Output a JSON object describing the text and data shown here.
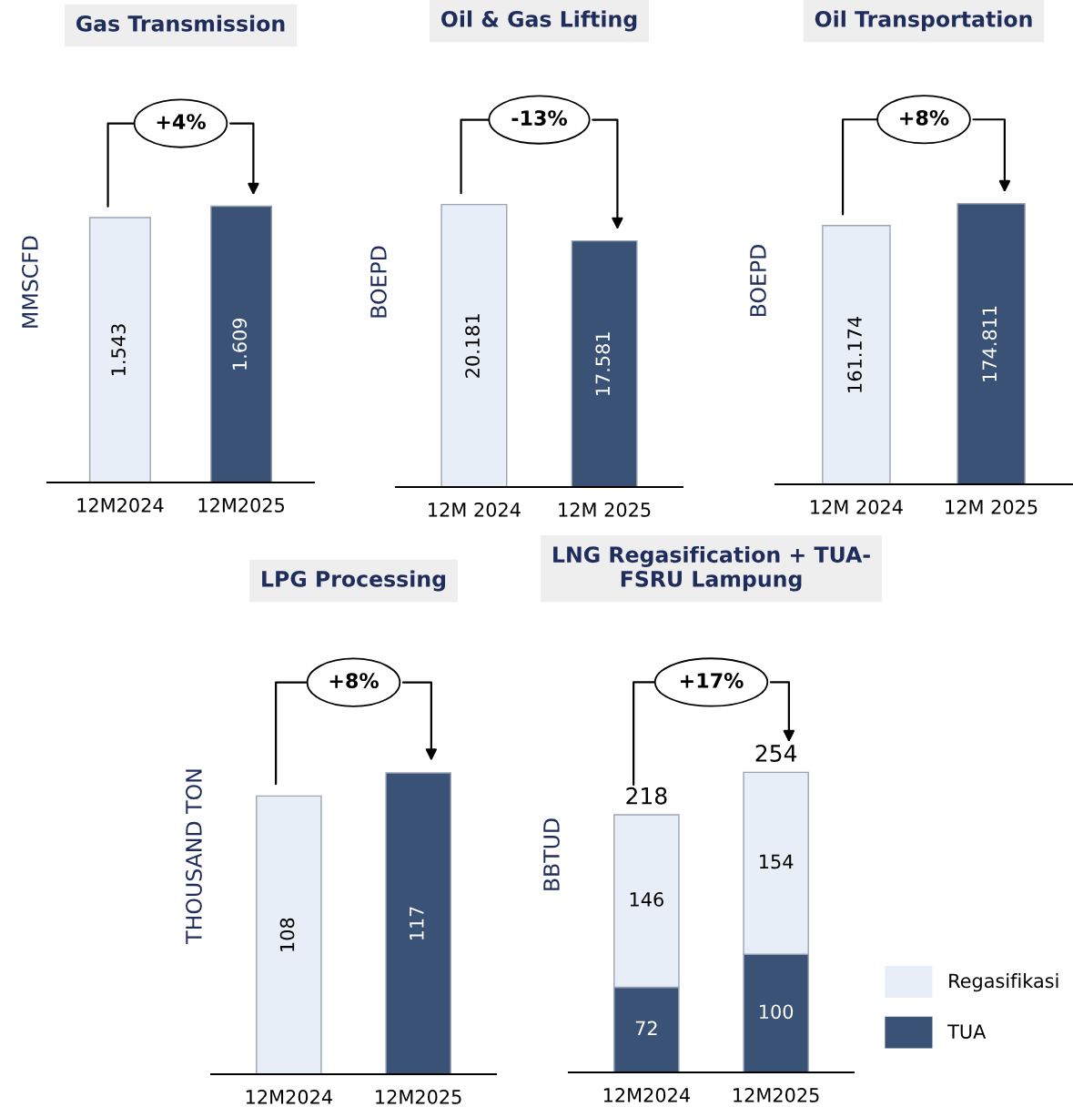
{
  "chart_data": [
    {
      "type": "bar",
      "title": "Gas Transmission",
      "ylabel": "MMSCFD",
      "categories": [
        "12M2024",
        "12M2025"
      ],
      "values": [
        1.543,
        1.609
      ],
      "colors": [
        "#e8eef8",
        "#3a5276"
      ],
      "data_labels": true,
      "annotations": [
        "+4%"
      ]
    },
    {
      "type": "bar",
      "title": "Oil & Gas Lifting",
      "ylabel": "BOEPD",
      "categories": [
        "12M 2024",
        "12M 2025"
      ],
      "values": [
        20.181,
        17.581
      ],
      "colors": [
        "#e8eef8",
        "#3a5276"
      ],
      "data_labels": true,
      "annotations": [
        "-13%"
      ]
    },
    {
      "type": "bar",
      "title": "Oil Transportation",
      "ylabel": "BOEPD",
      "categories": [
        "12M 2024",
        "12M 2025"
      ],
      "values": [
        161.174,
        174.811
      ],
      "colors": [
        "#e8eef8",
        "#3a5276"
      ],
      "data_labels": true,
      "annotations": [
        "+8%"
      ]
    },
    {
      "type": "bar",
      "title": "LPG Processing",
      "ylabel": "THOUSAND TON",
      "categories": [
        "12M2024",
        "12M2025"
      ],
      "values": [
        108,
        117
      ],
      "colors": [
        "#e8eef8",
        "#3a5276"
      ],
      "data_labels": true,
      "annotations": [
        "+8%"
      ]
    },
    {
      "type": "bar",
      "title": "LNG Regasification + TUA-\nFSRU Lampung",
      "ylabel": "BBTUD",
      "categories": [
        "12M2024",
        "12M2025"
      ],
      "stacked": true,
      "series": [
        {
          "name": "TUA",
          "color": "#3a5276",
          "values": [
            72,
            100
          ]
        },
        {
          "name": "Regasifikasi",
          "color": "#e8eef8",
          "values": [
            146,
            154
          ]
        }
      ],
      "totals": [
        "218",
        "254"
      ],
      "data_labels": true,
      "legend": "right",
      "annotations": [
        "+17%"
      ]
    }
  ]
}
